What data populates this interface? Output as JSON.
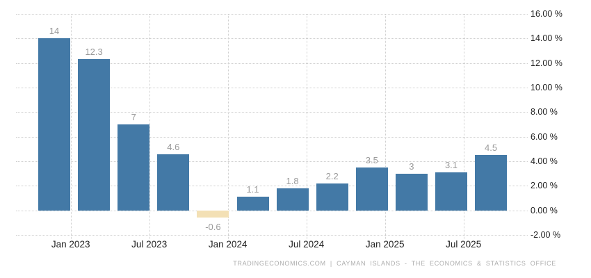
{
  "footer": {
    "text": "TRADINGECONOMICS.COM | CAYMAN ISLANDS - THE ECONOMICS & STATISTICS OFFICE"
  },
  "chart_data": {
    "type": "bar",
    "title": "",
    "categories": [
      "Jan 2023",
      "Jul 2023",
      "Jan 2024",
      "Jul 2024",
      "Jan 2025",
      "Jul 2025"
    ],
    "values": [
      14,
      12.3,
      7,
      4.6,
      -0.6,
      1.1,
      1.8,
      2.2,
      3.5,
      3,
      3.1,
      4.5
    ],
    "point_labels": [
      "14",
      "12.3",
      "7",
      "4.6",
      "-0.6",
      "1.1",
      "1.8",
      "2.2",
      "3.5",
      "3",
      "3.1",
      "4.5"
    ],
    "x_tick_labels": [
      "Jan 2023",
      "Jul 2023",
      "Jan 2024",
      "Jul 2024",
      "Jan 2025",
      "Jul 2025"
    ],
    "y_tick_labels": [
      "16.00 %",
      "14.00 %",
      "12.00 %",
      "10.00 %",
      "8.00 %",
      "6.00 %",
      "4.00 %",
      "2.00 %",
      "0.00 %",
      "-2.00 %"
    ],
    "y_tick_values": [
      16,
      14,
      12,
      10,
      8,
      6,
      4,
      2,
      0,
      -2
    ],
    "ylim": [
      -2,
      16
    ],
    "xlabel": "",
    "ylabel": "",
    "grid": "dotted",
    "legend": "none",
    "colors": {
      "positive_bar": "#4379A6",
      "negative_bar": "#F3E0B5",
      "grid": "#CFCFCF",
      "value_label": "#9A9A9A",
      "axis_label": "#222222",
      "footer_text": "#ADADAD",
      "background": "#FFFFFF"
    }
  }
}
